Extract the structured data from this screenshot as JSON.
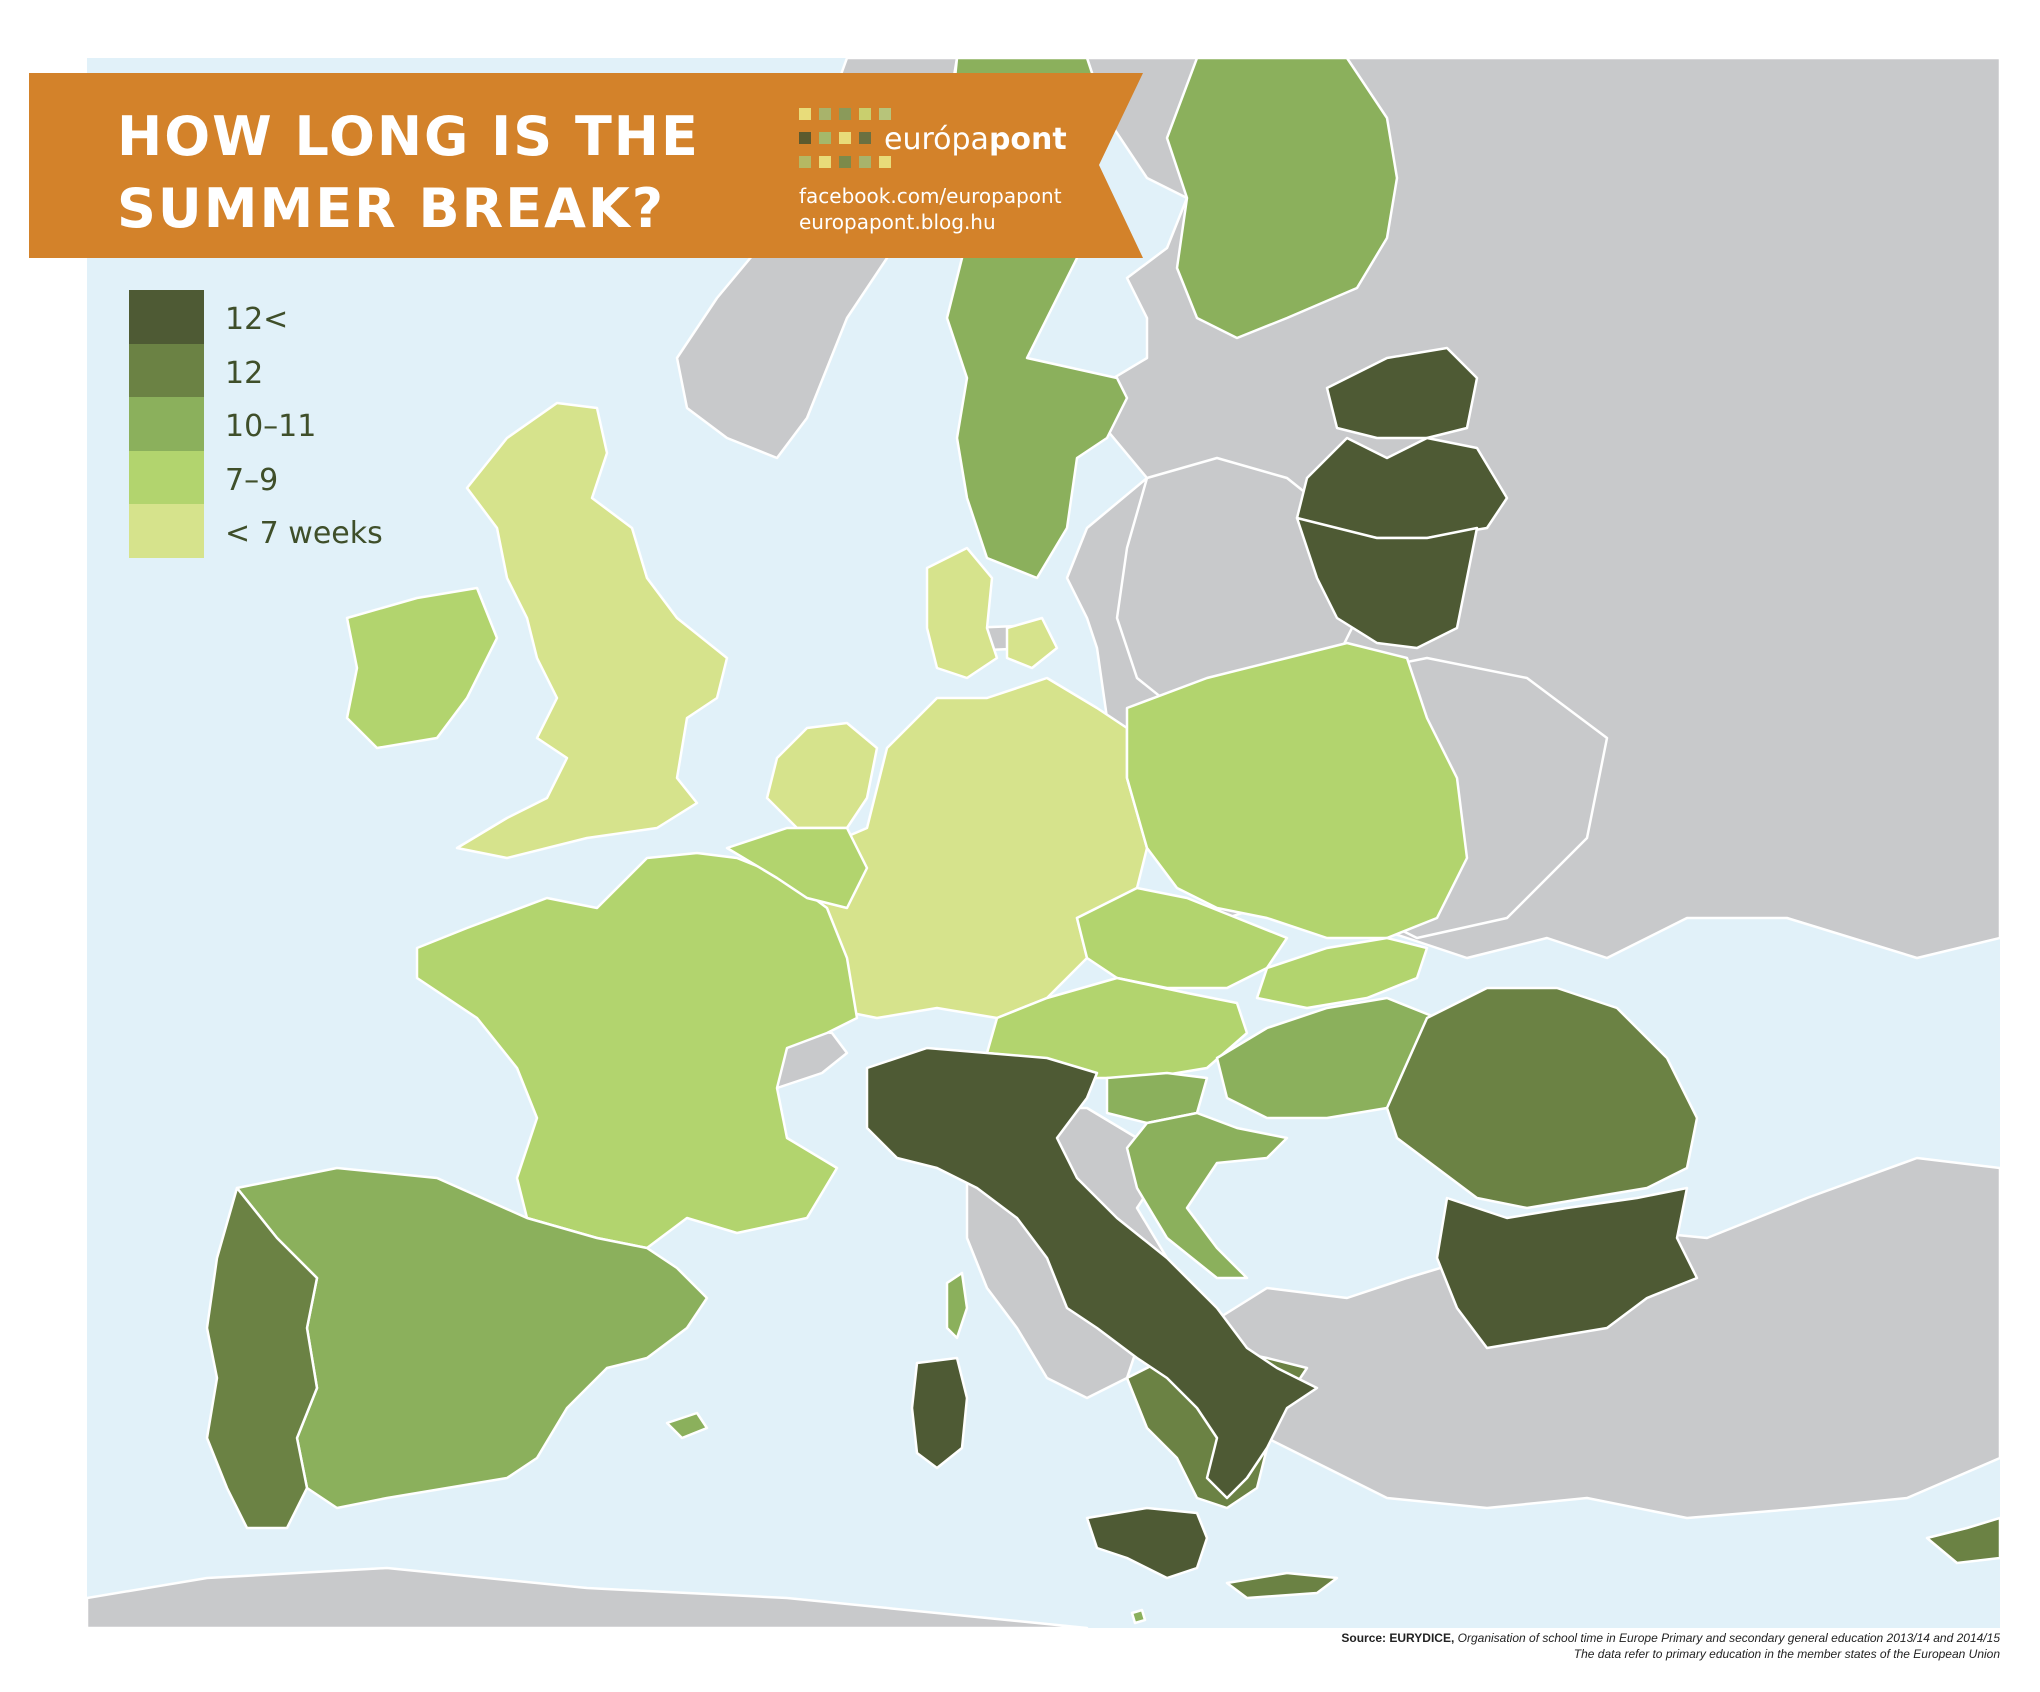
{
  "title": "HOW LONG IS THE\nSUMMER BREAK?",
  "brand": {
    "name_light": "európa",
    "name_bold": "pont",
    "facebook": "facebook.com/europapont",
    "blog": "europapont.blog.hu"
  },
  "legend": [
    {
      "label": "12<",
      "color": "#4e5a34",
      "category": "12<"
    },
    {
      "label": "12",
      "color": "#6b8244",
      "category": "12"
    },
    {
      "label": "10–11",
      "color": "#8bb05c",
      "category": "10-11"
    },
    {
      "label": "7–9",
      "color": "#b2d46e",
      "category": "7-9"
    },
    {
      "label": "< 7 weeks",
      "color": "#d6e38c",
      "category": "<7"
    }
  ],
  "colors": {
    "sea": "#e1f1f9",
    "no_data": "#c8c9cb",
    "banner": "#d3822a",
    "banner_shadow": "#9c6a17"
  },
  "map_data": {
    "type": "choropleth",
    "regions": [
      {
        "region": "Estonia",
        "category": "12<"
      },
      {
        "region": "Latvia",
        "category": "12<"
      },
      {
        "region": "Lithuania",
        "category": "12<"
      },
      {
        "region": "Italy",
        "category": "12<"
      },
      {
        "region": "Bulgaria",
        "category": "12<"
      },
      {
        "region": "Portugal",
        "category": "12"
      },
      {
        "region": "Romania",
        "category": "12"
      },
      {
        "region": "Greece",
        "category": "12"
      },
      {
        "region": "Cyprus",
        "category": "12"
      },
      {
        "region": "Spain",
        "category": "10-11"
      },
      {
        "region": "Sweden",
        "category": "10-11"
      },
      {
        "region": "Finland",
        "category": "10-11"
      },
      {
        "region": "Hungary",
        "category": "10-11"
      },
      {
        "region": "Croatia",
        "category": "10-11"
      },
      {
        "region": "Slovenia",
        "category": "10-11"
      },
      {
        "region": "Malta",
        "category": "10-11"
      },
      {
        "region": "Ireland",
        "category": "7-9"
      },
      {
        "region": "France",
        "category": "7-9"
      },
      {
        "region": "Belgium",
        "category": "7-9"
      },
      {
        "region": "Luxembourg",
        "category": "7-9"
      },
      {
        "region": "Poland",
        "category": "7-9"
      },
      {
        "region": "Czech Republic",
        "category": "7-9"
      },
      {
        "region": "Slovakia",
        "category": "7-9"
      },
      {
        "region": "Austria",
        "category": "7-9"
      },
      {
        "region": "United Kingdom",
        "category": "<7"
      },
      {
        "region": "Netherlands",
        "category": "<7"
      },
      {
        "region": "Denmark",
        "category": "<7"
      },
      {
        "region": "Germany",
        "category": "<7"
      }
    ]
  },
  "source": {
    "label": "Source:",
    "org": "EURYDICE,",
    "text": "Organisation of school time in Europe Primary and secondary general education 2013/14 and 2014/15",
    "note": "The data refer to primary education in the member states of the European Union"
  }
}
